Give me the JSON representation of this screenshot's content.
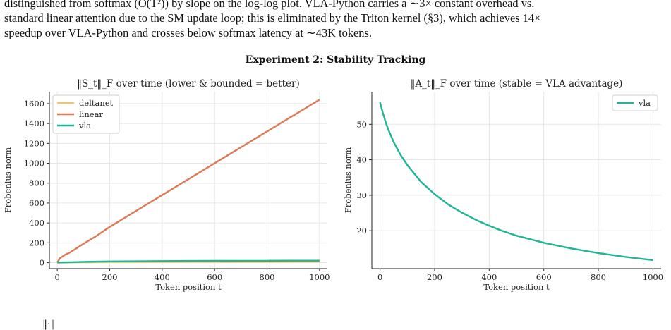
{
  "paragraph": {
    "line1": "distinguished from softmax (O(T²)) by slope on the log-log plot. VLA-Python carries a ∼3× constant overhead vs.",
    "line2": "standard linear attention due to the SM update loop; this is eliminated by the Triton kernel (§3), which achieves 14×",
    "line3": "speedup over VLA-Python and crosses below softmax latency at ∼43K tokens."
  },
  "figure_title": "Experiment 2: Stability Tracking",
  "bottom_fragment": "‖·‖",
  "chart_data": [
    {
      "type": "line",
      "title": "‖S_t‖_F over time  (lower & bounded = better)",
      "xlabel": "Token position t",
      "ylabel": "Frobenius norm",
      "xlim": [
        -30,
        1030
      ],
      "ylim": [
        -60,
        1720
      ],
      "xticks": [
        0,
        200,
        400,
        600,
        800,
        1000
      ],
      "yticks": [
        0,
        200,
        400,
        600,
        800,
        1000,
        1200,
        1400,
        1600
      ],
      "grid": true,
      "legend": "top-left",
      "series": [
        {
          "name": "deltanet",
          "color": "#f5c26b",
          "x": [
            0,
            100,
            200,
            300,
            400,
            500,
            600,
            700,
            800,
            900,
            1000
          ],
          "y": [
            0,
            3,
            5,
            6,
            7,
            8,
            8,
            9,
            9,
            10,
            10
          ]
        },
        {
          "name": "linear",
          "color": "#dd7a56",
          "x": [
            0,
            10,
            30,
            50,
            100,
            150,
            200,
            250,
            300,
            350,
            400,
            450,
            500,
            550,
            600,
            650,
            700,
            750,
            800,
            850,
            900,
            950,
            1000
          ],
          "y": [
            0,
            45,
            80,
            105,
            190,
            270,
            360,
            440,
            520,
            600,
            680,
            760,
            840,
            920,
            1000,
            1080,
            1160,
            1240,
            1320,
            1400,
            1480,
            1560,
            1640
          ]
        },
        {
          "name": "vla",
          "color": "#1fb595",
          "x": [
            0,
            100,
            200,
            300,
            400,
            500,
            600,
            700,
            800,
            900,
            1000
          ],
          "y": [
            2,
            8,
            12,
            14,
            16,
            17,
            18,
            19,
            19,
            20,
            20
          ]
        }
      ]
    },
    {
      "type": "line",
      "title": "‖A_t‖_F over time  (stable = VLA advantage)",
      "xlabel": "Token position t",
      "ylabel": "Frobenius norm",
      "xlim": [
        -30,
        1030
      ],
      "ylim": [
        9.3,
        59.2
      ],
      "xticks": [
        0,
        200,
        400,
        600,
        800,
        1000
      ],
      "yticks": [
        20,
        30,
        40,
        50
      ],
      "grid": true,
      "legend": "top-right",
      "series": [
        {
          "name": "vla",
          "color": "#1fb595",
          "x": [
            0,
            10,
            20,
            30,
            50,
            75,
            100,
            150,
            200,
            250,
            300,
            350,
            400,
            450,
            500,
            600,
            700,
            800,
            900,
            1000
          ],
          "y": [
            56.2,
            53.3,
            50.8,
            48.6,
            45.0,
            41.4,
            38.5,
            33.8,
            30.3,
            27.4,
            25.1,
            23.1,
            21.4,
            19.9,
            18.6,
            16.6,
            15.0,
            13.7,
            12.6,
            11.7
          ]
        }
      ]
    }
  ]
}
